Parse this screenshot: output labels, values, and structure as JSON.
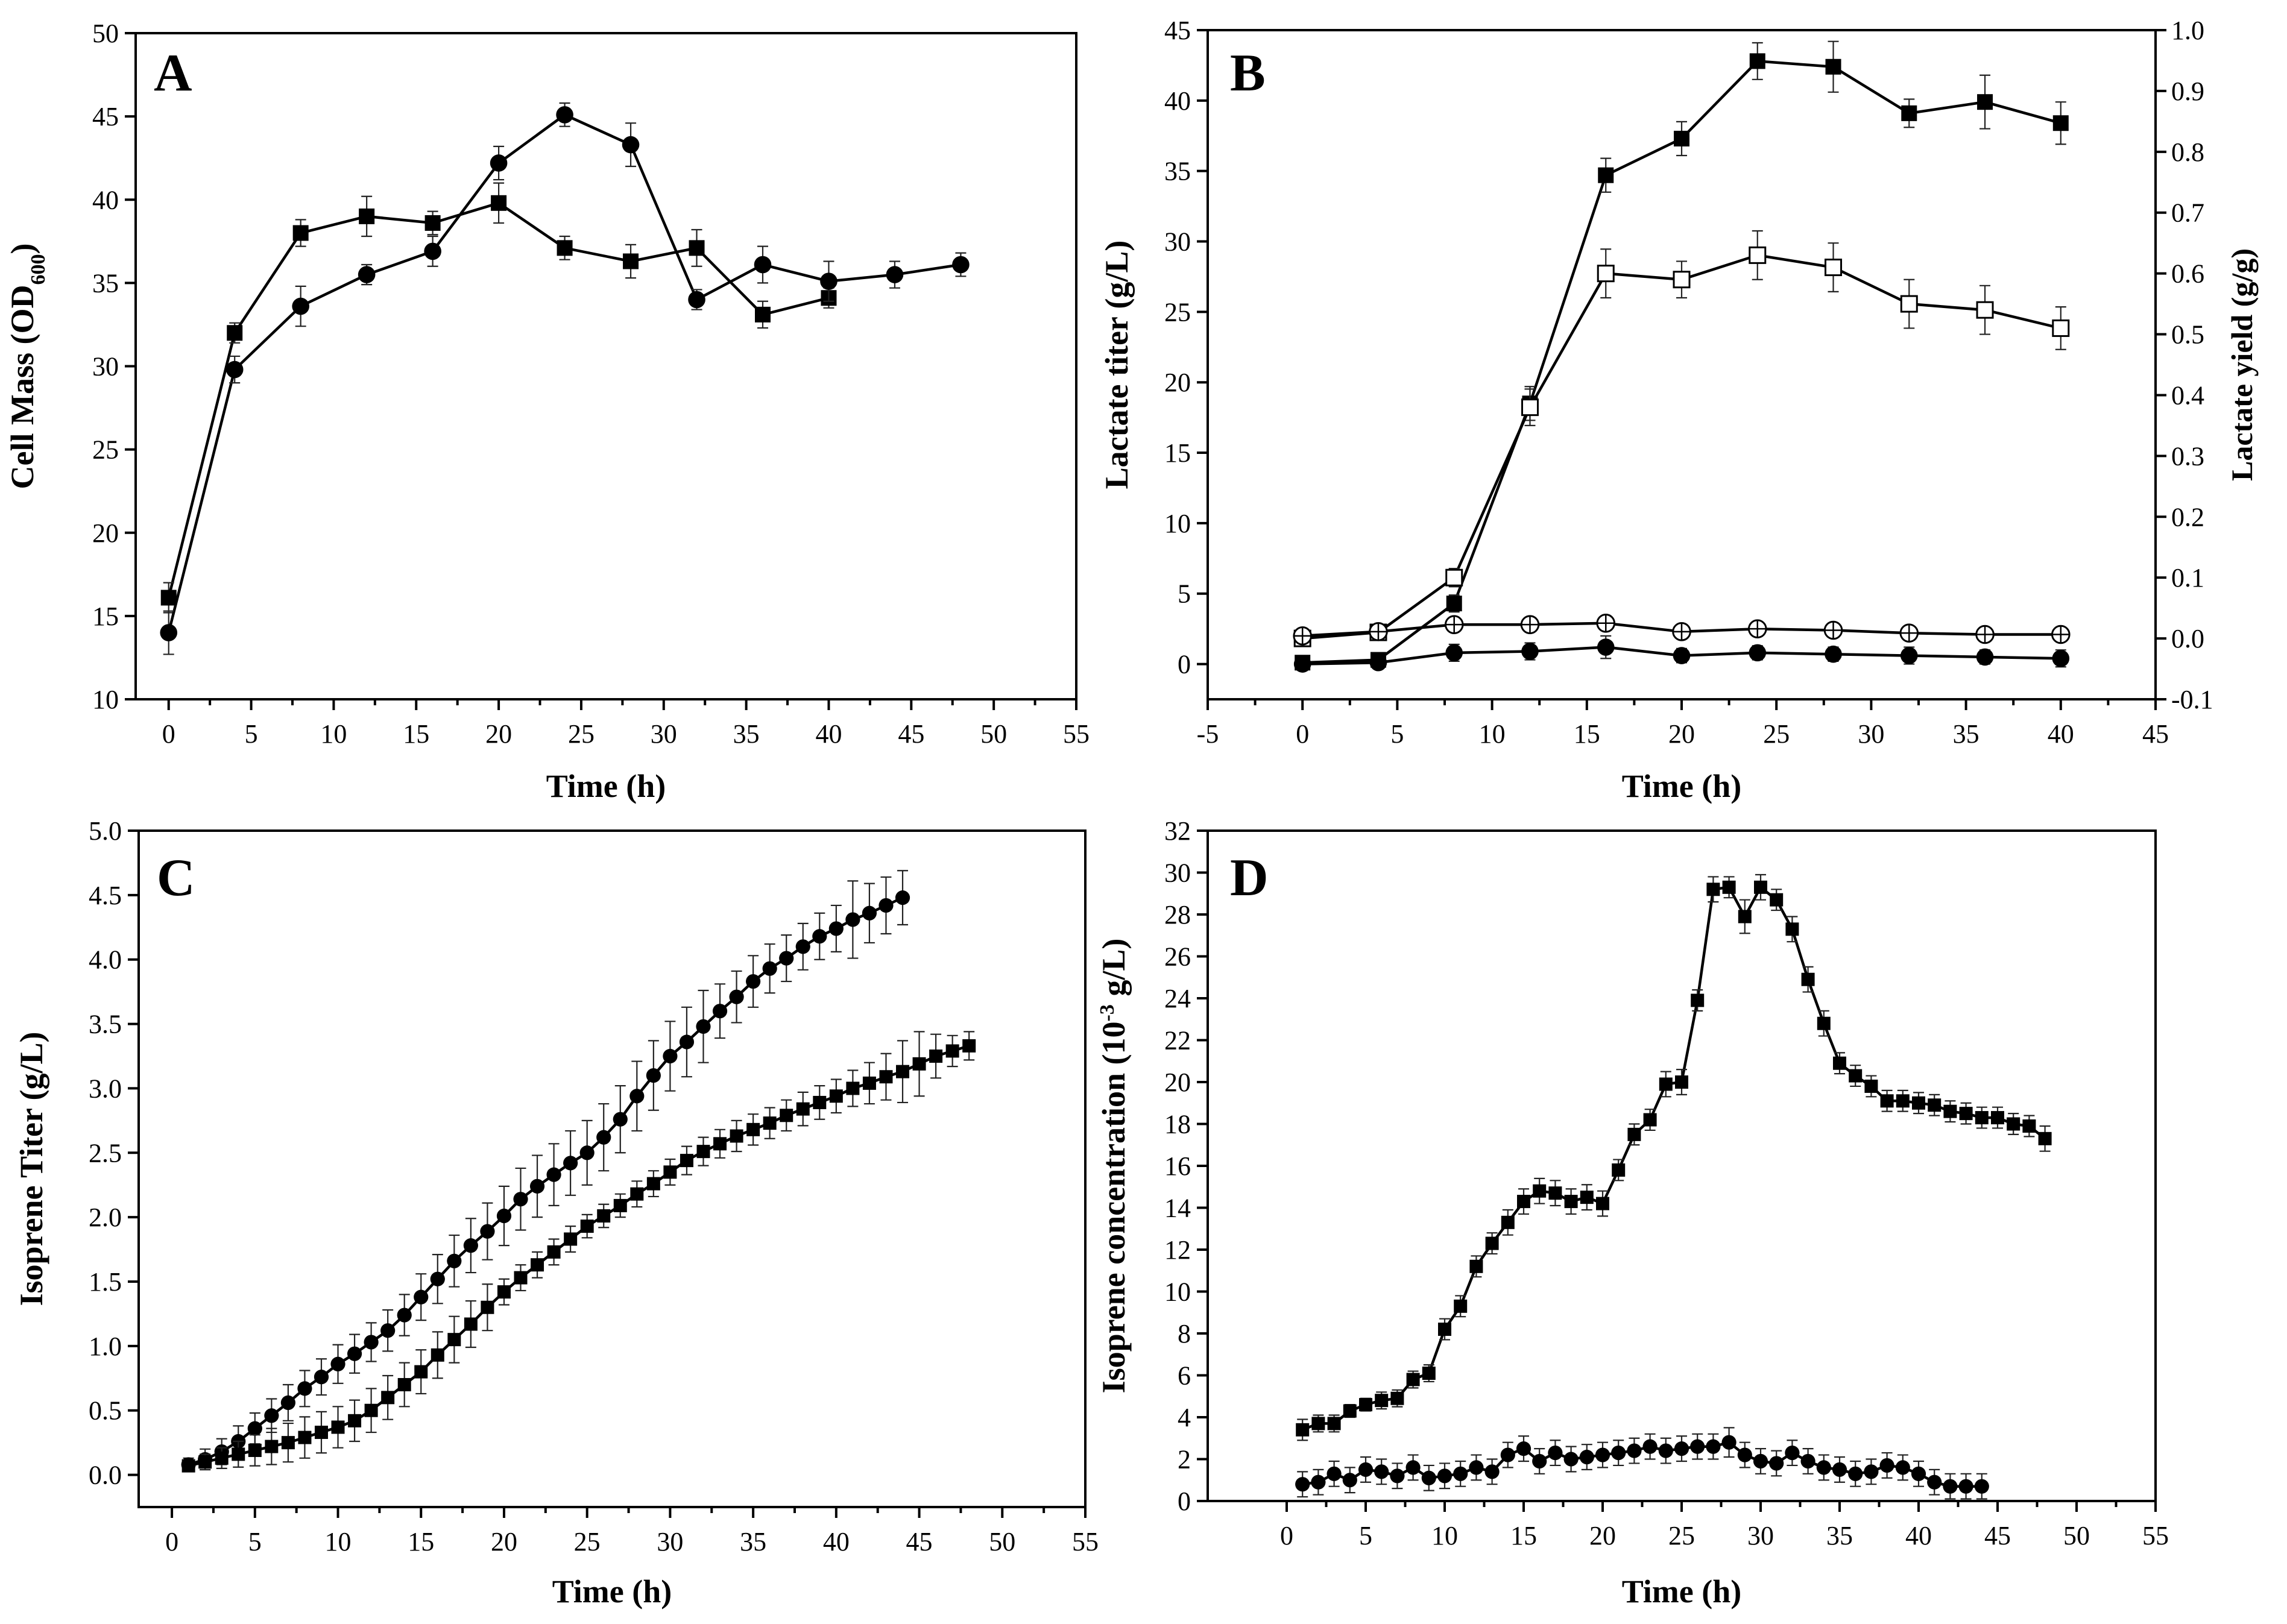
{
  "chart_data": [
    {
      "panel": "A",
      "type": "line",
      "xlabel": "Time (h)",
      "ylabel": "Cell Mass (OD",
      "ylabel_sub": "600",
      "ylabel_end": ")",
      "xlim": [
        -2,
        55
      ],
      "ylim": [
        10,
        50
      ],
      "xticks": [
        0,
        5,
        10,
        15,
        20,
        25,
        30,
        35,
        40,
        45,
        50,
        55
      ],
      "yticks": [
        10,
        15,
        20,
        25,
        30,
        35,
        40,
        45,
        50
      ],
      "series": [
        {
          "marker": "square-filled",
          "x": [
            0,
            4,
            8,
            12,
            16,
            20,
            24,
            28,
            32,
            36,
            40
          ],
          "y": [
            16.1,
            32.0,
            38.0,
            39.0,
            38.6,
            39.8,
            37.1,
            36.3,
            37.1,
            33.1,
            34.1
          ],
          "err": [
            0.9,
            0.6,
            0.8,
            1.2,
            0.7,
            1.2,
            0.7,
            1.0,
            1.1,
            0.8,
            0.6
          ]
        },
        {
          "marker": "circle-filled",
          "x": [
            0,
            4,
            8,
            12,
            16,
            20,
            24,
            28,
            32,
            36,
            40,
            44,
            48
          ],
          "y": [
            14.0,
            29.8,
            33.6,
            35.5,
            36.9,
            42.2,
            45.1,
            43.3,
            34.0,
            36.1,
            35.1,
            35.5,
            36.1
          ],
          "err": [
            1.3,
            0.8,
            1.2,
            0.6,
            0.9,
            1.0,
            0.7,
            1.3,
            0.6,
            1.1,
            1.2,
            0.8,
            0.7
          ]
        }
      ]
    },
    {
      "panel": "B",
      "type": "line",
      "xlabel": "Time (h)",
      "ylabel": "Lactate titer (g/L)",
      "y2label": "Lactate yield (g/g)",
      "xlim": [
        -5,
        45
      ],
      "ylim": [
        -2.5,
        45
      ],
      "y2lim": [
        -0.1,
        1.0
      ],
      "xticks": [
        -5,
        0,
        5,
        10,
        15,
        20,
        25,
        30,
        35,
        40,
        45
      ],
      "yticks": [
        0,
        5,
        10,
        15,
        20,
        25,
        30,
        35,
        40,
        45
      ],
      "y2ticks": [
        -0.1,
        0.0,
        0.1,
        0.2,
        0.3,
        0.4,
        0.5,
        0.6,
        0.7,
        0.8,
        0.9,
        1.0
      ],
      "series": [
        {
          "marker": "square-filled",
          "axis": "left",
          "x": [
            0,
            4,
            8,
            12,
            16,
            20,
            24,
            28,
            32,
            36,
            40
          ],
          "y": [
            0.1,
            0.3,
            4.3,
            18.5,
            34.7,
            37.3,
            42.8,
            42.4,
            39.1,
            39.9,
            38.4
          ],
          "err": [
            0.3,
            0.3,
            0.6,
            1.2,
            1.2,
            1.2,
            1.3,
            1.8,
            1.0,
            1.9,
            1.5
          ]
        },
        {
          "marker": "square-open",
          "axis": "right",
          "x": [
            0,
            4,
            8,
            12,
            16,
            20,
            24,
            28,
            32,
            36,
            40
          ],
          "y": [
            0.0,
            0.01,
            0.1,
            0.38,
            0.6,
            0.59,
            0.63,
            0.61,
            0.55,
            0.54,
            0.51
          ],
          "err": [
            0.008,
            0.01,
            0.015,
            0.03,
            0.04,
            0.03,
            0.04,
            0.04,
            0.04,
            0.04,
            0.035
          ]
        },
        {
          "marker": "circle-crossed",
          "axis": "left",
          "x": [
            0,
            4,
            8,
            12,
            16,
            20,
            24,
            28,
            32,
            36,
            40
          ],
          "y": [
            2.0,
            2.3,
            2.8,
            2.8,
            2.9,
            2.3,
            2.5,
            2.4,
            2.2,
            2.1,
            2.1
          ],
          "err": [
            0.3,
            0.3,
            0.4,
            0.3,
            0.3,
            0.3,
            0.3,
            0.3,
            0.3,
            0.3,
            0.3
          ]
        },
        {
          "marker": "circle-filled",
          "axis": "left",
          "x": [
            0,
            4,
            8,
            12,
            16,
            20,
            24,
            28,
            32,
            36,
            40
          ],
          "y": [
            0.0,
            0.1,
            0.8,
            0.9,
            1.2,
            0.6,
            0.8,
            0.7,
            0.6,
            0.5,
            0.4
          ],
          "err": [
            0.3,
            0.3,
            0.6,
            0.6,
            0.8,
            0.5,
            0.5,
            0.5,
            0.6,
            0.5,
            0.6
          ]
        }
      ]
    },
    {
      "panel": "C",
      "type": "line",
      "xlabel": "Time (h)",
      "ylabel": "Isoprene Titer (g/L)",
      "xlim": [
        -2,
        55
      ],
      "ylim": [
        -0.25,
        5.0
      ],
      "xticks": [
        0,
        5,
        10,
        15,
        20,
        25,
        30,
        35,
        40,
        45,
        50,
        55
      ],
      "yticks": [
        0.0,
        0.5,
        1.0,
        1.5,
        2.0,
        2.5,
        3.0,
        3.5,
        4.0,
        4.5,
        5.0
      ],
      "series": [
        {
          "marker": "circle-filled",
          "x": [
            1,
            2,
            3,
            4,
            5,
            6,
            7,
            8,
            9,
            10,
            11,
            12,
            13,
            14,
            15,
            16,
            17,
            18,
            19,
            20,
            21,
            22,
            23,
            24,
            25,
            26,
            27,
            28,
            29,
            30,
            31,
            32,
            33,
            34,
            35,
            36,
            37,
            38,
            39,
            40,
            41,
            42,
            43,
            44
          ],
          "y": [
            0.08,
            0.12,
            0.18,
            0.26,
            0.36,
            0.46,
            0.56,
            0.67,
            0.76,
            0.86,
            0.94,
            1.03,
            1.12,
            1.24,
            1.38,
            1.52,
            1.66,
            1.78,
            1.89,
            2.01,
            2.14,
            2.24,
            2.33,
            2.42,
            2.5,
            2.62,
            2.76,
            2.94,
            3.1,
            3.25,
            3.36,
            3.48,
            3.6,
            3.71,
            3.83,
            3.93,
            4.01,
            4.1,
            4.18,
            4.24,
            4.31,
            4.36,
            4.42,
            4.48
          ],
          "err": [
            0.05,
            0.08,
            0.1,
            0.12,
            0.12,
            0.13,
            0.14,
            0.14,
            0.14,
            0.15,
            0.15,
            0.15,
            0.16,
            0.16,
            0.18,
            0.19,
            0.2,
            0.21,
            0.22,
            0.23,
            0.24,
            0.24,
            0.24,
            0.25,
            0.25,
            0.26,
            0.26,
            0.27,
            0.27,
            0.27,
            0.27,
            0.28,
            0.21,
            0.2,
            0.2,
            0.19,
            0.18,
            0.18,
            0.18,
            0.18,
            0.3,
            0.23,
            0.22,
            0.21
          ]
        },
        {
          "marker": "square-filled",
          "x": [
            1,
            2,
            3,
            4,
            5,
            6,
            7,
            8,
            9,
            10,
            11,
            12,
            13,
            14,
            15,
            16,
            17,
            18,
            19,
            20,
            21,
            22,
            23,
            24,
            25,
            26,
            27,
            28,
            29,
            30,
            31,
            32,
            33,
            34,
            35,
            36,
            37,
            38,
            39,
            40,
            41,
            42,
            43,
            44,
            45,
            46,
            47,
            48
          ],
          "y": [
            0.07,
            0.1,
            0.13,
            0.16,
            0.19,
            0.22,
            0.25,
            0.29,
            0.33,
            0.37,
            0.42,
            0.5,
            0.6,
            0.7,
            0.8,
            0.93,
            1.05,
            1.17,
            1.3,
            1.42,
            1.53,
            1.63,
            1.73,
            1.83,
            1.93,
            2.01,
            2.09,
            2.18,
            2.26,
            2.35,
            2.44,
            2.51,
            2.57,
            2.63,
            2.68,
            2.73,
            2.79,
            2.84,
            2.89,
            2.94,
            3.0,
            3.04,
            3.09,
            3.13,
            3.19,
            3.25,
            3.29,
            3.33
          ],
          "err": [
            0.03,
            0.06,
            0.08,
            0.1,
            0.12,
            0.14,
            0.15,
            0.16,
            0.16,
            0.16,
            0.16,
            0.17,
            0.17,
            0.17,
            0.17,
            0.18,
            0.18,
            0.18,
            0.18,
            0.1,
            0.1,
            0.1,
            0.1,
            0.1,
            0.09,
            0.09,
            0.09,
            0.1,
            0.1,
            0.1,
            0.11,
            0.11,
            0.11,
            0.12,
            0.12,
            0.12,
            0.12,
            0.13,
            0.13,
            0.13,
            0.14,
            0.16,
            0.18,
            0.24,
            0.25,
            0.17,
            0.12,
            0.11
          ]
        }
      ]
    },
    {
      "panel": "D",
      "type": "line",
      "xlabel": "Time (h)",
      "ylabel": "Isoprene concentration (10",
      "ylabel_sup": "-3",
      "ylabel_end": " g/L)",
      "xlim": [
        -5,
        55
      ],
      "ylim": [
        0,
        32
      ],
      "xticks": [
        0,
        5,
        10,
        15,
        20,
        25,
        30,
        35,
        40,
        45,
        50,
        55
      ],
      "yticks": [
        0,
        2,
        4,
        6,
        8,
        10,
        12,
        14,
        16,
        18,
        20,
        22,
        24,
        26,
        28,
        30,
        32
      ],
      "series": [
        {
          "marker": "square-filled",
          "x": [
            1,
            2,
            3,
            4,
            5,
            6,
            7,
            8,
            9,
            10,
            11,
            12,
            13,
            14,
            15,
            16,
            17,
            18,
            19,
            20,
            21,
            22,
            23,
            24,
            25,
            26,
            27,
            28,
            29,
            30,
            31,
            32,
            33,
            34,
            35,
            36,
            37,
            38,
            39,
            40,
            41,
            42,
            43,
            44,
            45,
            46,
            47,
            48
          ],
          "y": [
            3.4,
            3.7,
            3.7,
            4.3,
            4.6,
            4.8,
            4.9,
            5.8,
            6.1,
            8.2,
            9.3,
            11.2,
            12.3,
            13.3,
            14.3,
            14.8,
            14.7,
            14.3,
            14.5,
            14.2,
            15.8,
            17.5,
            18.2,
            19.9,
            20.0,
            23.9,
            29.2,
            29.3,
            27.9,
            29.3,
            28.7,
            27.3,
            24.9,
            22.8,
            20.9,
            20.3,
            19.8,
            19.1,
            19.1,
            19.0,
            18.9,
            18.6,
            18.5,
            18.3,
            18.3,
            18.0,
            17.9,
            17.3
          ],
          "err": [
            0.5,
            0.4,
            0.4,
            0.3,
            0.3,
            0.4,
            0.4,
            0.4,
            0.4,
            0.5,
            0.5,
            0.5,
            0.5,
            0.6,
            0.6,
            0.6,
            0.6,
            0.6,
            0.6,
            0.6,
            0.5,
            0.5,
            0.5,
            0.6,
            0.6,
            0.5,
            0.6,
            0.5,
            0.8,
            0.6,
            0.5,
            0.6,
            0.6,
            0.6,
            0.5,
            0.5,
            0.5,
            0.5,
            0.5,
            0.5,
            0.5,
            0.5,
            0.5,
            0.5,
            0.5,
            0.5,
            0.5,
            0.6
          ]
        },
        {
          "marker": "circle-filled",
          "x": [
            1,
            2,
            3,
            4,
            5,
            6,
            7,
            8,
            9,
            10,
            11,
            12,
            13,
            14,
            15,
            16,
            17,
            18,
            19,
            20,
            21,
            22,
            23,
            24,
            25,
            26,
            27,
            28,
            29,
            30,
            31,
            32,
            33,
            34,
            35,
            36,
            37,
            38,
            39,
            40,
            41,
            42,
            43,
            44
          ],
          "y": [
            0.8,
            0.9,
            1.3,
            1.0,
            1.5,
            1.4,
            1.2,
            1.6,
            1.1,
            1.2,
            1.3,
            1.6,
            1.4,
            2.2,
            2.5,
            1.9,
            2.3,
            2.0,
            2.1,
            2.2,
            2.3,
            2.4,
            2.6,
            2.4,
            2.5,
            2.6,
            2.6,
            2.8,
            2.2,
            1.9,
            1.8,
            2.3,
            1.9,
            1.6,
            1.5,
            1.3,
            1.4,
            1.7,
            1.6,
            1.3,
            0.9,
            0.7,
            0.7,
            0.7
          ],
          "err": [
            0.6,
            0.6,
            0.6,
            0.6,
            0.6,
            0.6,
            0.6,
            0.6,
            0.6,
            0.6,
            0.6,
            0.6,
            0.6,
            0.6,
            0.6,
            0.6,
            0.6,
            0.6,
            0.6,
            0.6,
            0.6,
            0.6,
            0.6,
            0.6,
            0.6,
            0.6,
            0.6,
            0.7,
            0.6,
            0.6,
            0.6,
            0.6,
            0.6,
            0.6,
            0.6,
            0.6,
            0.6,
            0.6,
            0.6,
            0.6,
            0.6,
            0.6,
            0.6,
            0.6
          ]
        }
      ]
    }
  ]
}
